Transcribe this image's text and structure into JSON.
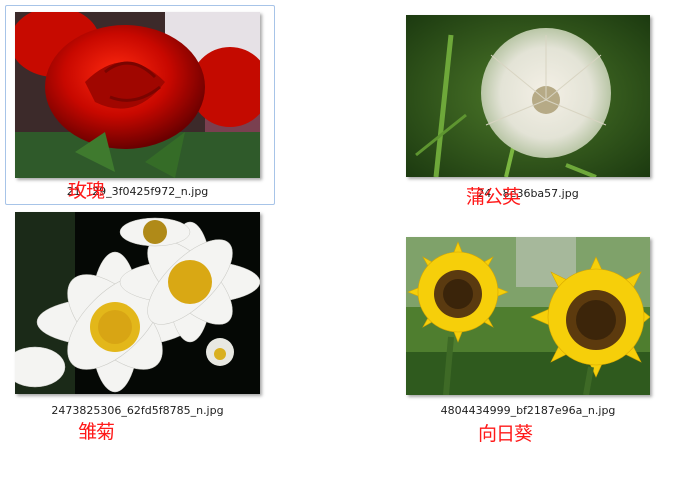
{
  "files": [
    {
      "filename": "21        29_3f0425f972_n.jpg",
      "label": "玫瑰",
      "icon": "rose-thumbnail"
    },
    {
      "filename": "24        8e36ba57.jpg",
      "label": "蒲公英",
      "icon": "dandelion-thumbnail"
    },
    {
      "filename": "2473825306_62fd5f8785_n.jpg",
      "label": "雏菊",
      "icon": "daisy-thumbnail"
    },
    {
      "filename": "4804434999_bf2187e96a_n.jpg",
      "label": "向日葵",
      "icon": "sunflower-thumbnail"
    }
  ]
}
